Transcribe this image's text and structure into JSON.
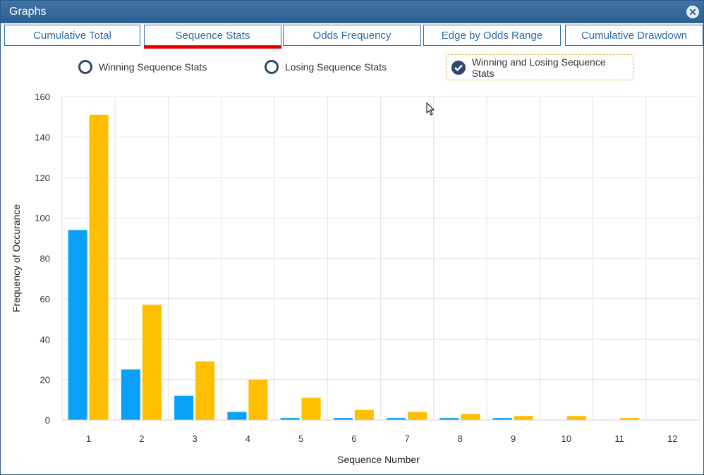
{
  "window": {
    "title": "Graphs"
  },
  "tabs": [
    {
      "label": "Cumulative Total"
    },
    {
      "label": "Sequence Stats"
    },
    {
      "label": "Odds Frequency"
    },
    {
      "label": "Edge by Odds Range"
    },
    {
      "label": "Cumulative Drawdown"
    }
  ],
  "active_tab": "Sequence Stats",
  "radios": [
    {
      "label": "Winning Sequence Stats",
      "checked": false
    },
    {
      "label": "Losing Sequence Stats",
      "checked": false
    },
    {
      "label": "Winning and Losing Sequence Stats",
      "checked": true
    }
  ],
  "colors": {
    "winning": "#0aa0f7",
    "losing": "#ffbe00",
    "accent": "#e00000",
    "title_bar": "#2e5f91"
  },
  "chart_data": {
    "type": "bar",
    "categories": [
      "1",
      "2",
      "3",
      "4",
      "5",
      "6",
      "7",
      "8",
      "9",
      "10",
      "11",
      "12"
    ],
    "series": [
      {
        "values": [
          94,
          25,
          12,
          4,
          1,
          1,
          1,
          1,
          1,
          0,
          0,
          0
        ]
      },
      {
        "values": [
          151,
          57,
          29,
          20,
          11,
          5,
          4,
          3,
          2,
          2,
          1,
          0
        ]
      }
    ],
    "xlabel": "Sequence Number",
    "ylabel": "Frequency of Occurance",
    "ylim": [
      0,
      160
    ],
    "yticks": [
      0,
      20,
      40,
      60,
      80,
      100,
      120,
      140,
      160
    ],
    "grid": true
  }
}
